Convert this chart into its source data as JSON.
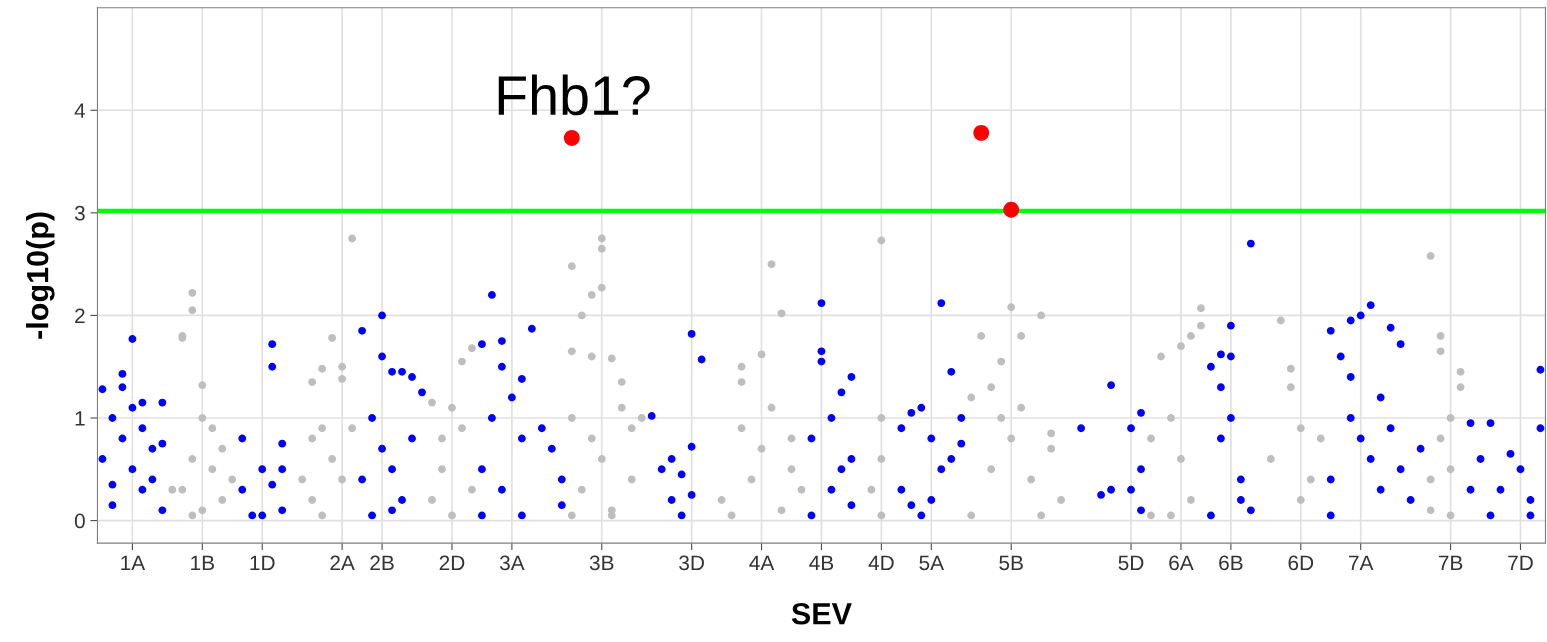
{
  "chart_data": {
    "type": "scatter",
    "xlabel": "SEV",
    "ylabel": "-log10(p)",
    "ylim": [
      -0.22,
      5.0
    ],
    "yticks": [
      0,
      1,
      2,
      3,
      4
    ],
    "categories": [
      null,
      null,
      null,
      "1A",
      null,
      null,
      null,
      null,
      null,
      null,
      "1B",
      null,
      null,
      null,
      null,
      null,
      "1D",
      null,
      null,
      null,
      null,
      null,
      null,
      null,
      "2A",
      null,
      null,
      null,
      "2B",
      null,
      null,
      null,
      null,
      null,
      null,
      "2D",
      null,
      null,
      null,
      null,
      null,
      "3A",
      null,
      null,
      null,
      null,
      null,
      null,
      null,
      null,
      "3B",
      null,
      null,
      null,
      null,
      null,
      null,
      null,
      null,
      "3D",
      null,
      null,
      null,
      null,
      null,
      null,
      "4A",
      null,
      null,
      null,
      null,
      null,
      "4B",
      null,
      null,
      null,
      null,
      null,
      "4D",
      null,
      null,
      null,
      null,
      "5A",
      null,
      null,
      null,
      null,
      null,
      null,
      null,
      "5B",
      null,
      null,
      null,
      null,
      null,
      null,
      null,
      null,
      null,
      null,
      null,
      "5D",
      null,
      null,
      null,
      null,
      "6A",
      null,
      null,
      null,
      null,
      "6B",
      null,
      null,
      null,
      null,
      null,
      null,
      "6D",
      null,
      null,
      null,
      null,
      null,
      "7A",
      null,
      null,
      null,
      null,
      null,
      null,
      null,
      null,
      "7B",
      null,
      null,
      null,
      null,
      null,
      null,
      "7D",
      null,
      null
    ],
    "grid": true,
    "marker": "circle",
    "ref_lines": [
      {
        "axis": "y",
        "value": 3.02,
        "color": "#00ff00"
      }
    ],
    "annotations": [
      "Fhb1?"
    ],
    "series": [
      {
        "color": "#0000ff",
        "values": [
          0.6,
          0.15,
          1.43,
          1.77,
          1.15,
          0.4,
          1.15,
          null,
          null,
          null,
          null,
          null,
          null,
          null,
          0.8,
          0.05,
          0.5,
          1.72,
          0.75,
          null,
          null,
          null,
          null,
          null,
          null,
          null,
          1.85,
          1.0,
          2.0,
          1.45,
          1.45,
          1.4,
          1.25,
          null,
          null,
          null,
          null,
          null,
          0.5,
          2.2,
          1.75,
          1.2,
          0.8,
          1.87,
          0.9,
          0.7,
          0.4,
          null,
          null,
          null,
          null,
          null,
          null,
          null,
          null,
          1.02,
          0.5,
          0.6,
          0.45,
          1.82,
          1.57,
          null,
          null,
          null,
          null,
          null,
          null,
          null,
          null,
          null,
          null,
          0.8,
          2.12,
          1.0,
          1.25,
          1.4,
          null,
          null,
          null,
          null,
          0.9,
          1.05,
          1.1,
          0.8,
          0.5,
          0.6,
          1.0,
          null,
          null,
          null,
          null,
          null,
          null,
          null,
          null,
          null,
          null,
          null,
          0.9,
          null,
          0.25,
          1.32,
          null,
          0.9,
          1.05,
          null,
          null,
          null,
          null,
          null,
          null,
          1.5,
          1.62,
          1.9,
          0.4,
          2.7,
          null,
          null,
          null,
          null,
          null,
          null,
          null,
          1.85,
          1.6,
          1.95,
          2.0,
          2.1,
          0.3,
          1.88,
          1.72,
          0.2,
          0.7,
          null,
          null,
          null,
          null,
          0.95,
          0.6,
          0.95,
          0.3,
          0.65,
          0.5,
          0.2,
          1.47
        ]
      },
      {
        "color": "#0000ff",
        "values": [
          1.28,
          1.0,
          1.3,
          0.5,
          0.9,
          0.7,
          0.75,
          null,
          null,
          null,
          null,
          null,
          null,
          null,
          0.3,
          null,
          0.05,
          1.5,
          0.1,
          null,
          null,
          null,
          null,
          null,
          null,
          null,
          0.4,
          0.05,
          1.6,
          0.1,
          0.2,
          0.8,
          null,
          null,
          null,
          null,
          null,
          null,
          0.05,
          1.0,
          1.5,
          null,
          1.38,
          null,
          null,
          null,
          0.15,
          null,
          null,
          null,
          null,
          null,
          null,
          null,
          null,
          null,
          null,
          0.2,
          0.05,
          0.72,
          null,
          null,
          null,
          null,
          null,
          null,
          null,
          null,
          null,
          null,
          null,
          0.05,
          1.65,
          0.3,
          0.5,
          0.6,
          null,
          null,
          null,
          null,
          0.3,
          0.15,
          0.05,
          0.2,
          2.12,
          1.45,
          0.75,
          null,
          null,
          null,
          null,
          null,
          null,
          null,
          null,
          null,
          null,
          null,
          null,
          null,
          null,
          0.3,
          null,
          0.3,
          0.5,
          null,
          null,
          null,
          null,
          null,
          null,
          0.05,
          1.3,
          1.6,
          0.2,
          0.1,
          null,
          null,
          null,
          null,
          null,
          null,
          null,
          0.4,
          null,
          1.4,
          0.8,
          0.6,
          1.2,
          0.9,
          0.5,
          null,
          null,
          null,
          null,
          null,
          null,
          0.3,
          null,
          0.05,
          null,
          null,
          null,
          0.05,
          0.9
        ]
      },
      {
        "color": "#0000ff",
        "values": [
          null,
          0.35,
          0.8,
          1.1,
          0.3,
          null,
          0.1,
          null,
          null,
          null,
          null,
          null,
          null,
          null,
          null,
          null,
          null,
          0.35,
          0.5,
          null,
          null,
          null,
          null,
          null,
          null,
          null,
          null,
          null,
          0.7,
          0.5,
          null,
          null,
          null,
          null,
          null,
          null,
          null,
          null,
          1.72,
          null,
          0.3,
          null,
          0.05,
          null,
          null,
          null,
          null,
          null,
          null,
          null,
          null,
          null,
          null,
          null,
          null,
          null,
          null,
          null,
          null,
          0.25,
          null,
          null,
          null,
          null,
          null,
          null,
          null,
          null,
          null,
          null,
          null,
          null,
          1.55,
          null,
          null,
          0.15,
          null,
          null,
          null,
          null,
          null,
          null,
          null,
          null,
          null,
          null,
          null,
          null,
          null,
          null,
          null,
          null,
          null,
          null,
          null,
          null,
          null,
          null,
          null,
          null,
          null,
          null,
          null,
          null,
          0.1,
          null,
          null,
          null,
          null,
          null,
          null,
          null,
          0.8,
          1.0,
          null,
          null,
          null,
          null,
          null,
          null,
          null,
          null,
          null,
          0.05,
          null,
          1.0,
          null,
          null,
          null,
          null,
          null,
          null,
          null,
          null,
          null,
          null,
          null,
          null,
          null,
          null,
          null,
          null,
          null,
          null,
          null
        ]
      },
      {
        "color": "#bebebe",
        "values": [
          null,
          null,
          null,
          null,
          null,
          null,
          null,
          0.3,
          1.78,
          2.22,
          1.32,
          0.9,
          0.7,
          0.4,
          null,
          null,
          null,
          null,
          null,
          null,
          0.4,
          1.35,
          1.48,
          1.78,
          1.5,
          2.75,
          null,
          null,
          null,
          null,
          null,
          null,
          null,
          1.15,
          0.8,
          1.1,
          1.55,
          1.68,
          null,
          null,
          null,
          null,
          null,
          null,
          null,
          null,
          null,
          2.48,
          2.0,
          1.6,
          2.75,
          1.58,
          1.1,
          0.9,
          1.0,
          null,
          null,
          null,
          null,
          null,
          null,
          null,
          0.2,
          0.05,
          0.9,
          0.4,
          1.62,
          2.5,
          2.02,
          0.8,
          0.3,
          null,
          null,
          null,
          null,
          null,
          null,
          0.3,
          2.73,
          null,
          null,
          null,
          null,
          null,
          null,
          null,
          null,
          1.2,
          1.8,
          1.3,
          1.55,
          2.08,
          1.8,
          0.4,
          2.0,
          0.7,
          0.2,
          null,
          null,
          null,
          null,
          null,
          null,
          null,
          null,
          0.8,
          1.6,
          1.0,
          1.7,
          1.8,
          2.07,
          null,
          null,
          null,
          null,
          null,
          null,
          0.6,
          1.95,
          1.3,
          0.9,
          0.4,
          0.8,
          null,
          null,
          null,
          null,
          null,
          null,
          null,
          null,
          null,
          null,
          2.58,
          1.65,
          1.0,
          1.45,
          null,
          null,
          null,
          null,
          null,
          null,
          null,
          null
        ]
      },
      {
        "color": "#bebebe",
        "values": [
          null,
          null,
          null,
          null,
          null,
          null,
          null,
          null,
          1.8,
          2.05,
          1.0,
          0.5,
          0.2,
          null,
          null,
          null,
          null,
          null,
          null,
          null,
          null,
          0.8,
          0.9,
          0.6,
          1.38,
          0.9,
          null,
          null,
          null,
          null,
          null,
          null,
          null,
          0.2,
          0.5,
          0.05,
          0.9,
          0.3,
          null,
          null,
          null,
          null,
          null,
          null,
          null,
          null,
          null,
          1.65,
          0.3,
          0.8,
          2.65,
          0.05,
          1.35,
          0.4,
          null,
          null,
          null,
          null,
          null,
          null,
          null,
          null,
          null,
          null,
          1.5,
          null,
          0.7,
          1.1,
          0.1,
          0.5,
          null,
          null,
          null,
          null,
          null,
          null,
          null,
          null,
          1.0,
          null,
          null,
          null,
          null,
          null,
          null,
          null,
          null,
          0.05,
          null,
          0.5,
          1.0,
          0.8,
          1.1,
          null,
          0.05,
          0.85,
          null,
          null,
          null,
          null,
          null,
          null,
          null,
          null,
          null,
          0.05,
          null,
          0.05,
          0.6,
          0.2,
          1.9,
          null,
          null,
          null,
          null,
          null,
          null,
          null,
          null,
          1.48,
          0.2,
          null,
          null,
          null,
          null,
          null,
          null,
          null,
          null,
          null,
          null,
          null,
          null,
          0.1,
          1.8,
          0.5,
          1.3,
          null,
          null,
          null,
          null,
          null,
          null,
          null,
          null
        ]
      },
      {
        "color": "#bebebe",
        "values": [
          null,
          null,
          null,
          null,
          null,
          null,
          null,
          null,
          0.3,
          0.6,
          0.1,
          null,
          null,
          null,
          null,
          null,
          null,
          null,
          null,
          null,
          null,
          0.2,
          0.05,
          null,
          0.4,
          null,
          null,
          null,
          null,
          null,
          null,
          null,
          null,
          null,
          null,
          null,
          null,
          null,
          null,
          null,
          null,
          null,
          null,
          null,
          null,
          null,
          null,
          1.0,
          null,
          2.2,
          2.27,
          0.1,
          null,
          null,
          null,
          null,
          null,
          null,
          null,
          null,
          null,
          null,
          null,
          null,
          1.35,
          null,
          null,
          null,
          null,
          null,
          null,
          null,
          null,
          null,
          null,
          null,
          null,
          null,
          0.6,
          null,
          null,
          null,
          null,
          null,
          null,
          null,
          null,
          null,
          null,
          null,
          null,
          null,
          null,
          null,
          null,
          null,
          null,
          null,
          null,
          null,
          null,
          null,
          null,
          null,
          null,
          null,
          null,
          null,
          null,
          null,
          null,
          null,
          null,
          null,
          null,
          null,
          null,
          null,
          null,
          null,
          null,
          null,
          null,
          null,
          null,
          null,
          null,
          null,
          null,
          null,
          null,
          null,
          null,
          0.4,
          0.8,
          0.05,
          null,
          null,
          null,
          null,
          null,
          null,
          null,
          null,
          null
        ]
      },
      {
        "color": "#bebebe",
        "values": [
          null,
          null,
          null,
          null,
          null,
          null,
          null,
          null,
          null,
          0.05,
          null,
          null,
          null,
          null,
          null,
          null,
          null,
          null,
          null,
          null,
          null,
          null,
          null,
          null,
          null,
          null,
          null,
          null,
          null,
          null,
          null,
          null,
          null,
          null,
          null,
          null,
          null,
          null,
          null,
          null,
          null,
          null,
          null,
          null,
          null,
          null,
          null,
          0.05,
          null,
          null,
          0.6,
          null,
          null,
          null,
          null,
          null,
          null,
          null,
          null,
          null,
          null,
          null,
          null,
          null,
          null,
          null,
          null,
          null,
          null,
          null,
          null,
          null,
          null,
          null,
          null,
          null,
          null,
          null,
          0.05,
          null,
          null,
          null,
          null,
          null,
          null,
          null,
          null,
          null,
          null,
          null,
          null,
          null,
          null,
          null,
          null,
          null,
          null,
          null,
          null,
          null,
          null,
          null,
          null,
          null,
          null,
          null,
          null,
          null,
          null,
          null,
          null,
          null,
          null,
          null,
          null,
          null,
          null,
          null,
          null,
          null,
          null,
          null,
          null,
          null,
          null,
          null,
          null,
          null,
          null,
          null,
          null,
          null,
          null,
          null,
          null,
          null,
          null,
          null,
          null,
          null,
          null,
          null,
          null,
          null,
          null
        ]
      },
      {
        "color": "#ff0000",
        "values": [
          null,
          null,
          null,
          null,
          null,
          null,
          null,
          null,
          null,
          null,
          null,
          null,
          null,
          null,
          null,
          null,
          null,
          null,
          null,
          null,
          null,
          null,
          null,
          null,
          null,
          null,
          null,
          null,
          null,
          null,
          null,
          null,
          null,
          null,
          null,
          null,
          null,
          null,
          null,
          null,
          null,
          null,
          null,
          null,
          null,
          null,
          null,
          3.73,
          null,
          null,
          null,
          null,
          null,
          null,
          null,
          null,
          null,
          null,
          null,
          null,
          null,
          null,
          null,
          null,
          null,
          null,
          null,
          null,
          null,
          null,
          null,
          null,
          null,
          null,
          null,
          null,
          null,
          null,
          null,
          null,
          null,
          null,
          null,
          null,
          null,
          null,
          null,
          null,
          3.78,
          null,
          null,
          3.03,
          null,
          null,
          null,
          null,
          null,
          null,
          null,
          null,
          null,
          null,
          null,
          null,
          null,
          null,
          null,
          null,
          null,
          null,
          null,
          null,
          null,
          null,
          null,
          null,
          null,
          null,
          null,
          null,
          null,
          null,
          null,
          null,
          null,
          null,
          null,
          null,
          null,
          null,
          null,
          null,
          null,
          null,
          null,
          null,
          null,
          null,
          null,
          null,
          null,
          null,
          null,
          null,
          null
        ]
      }
    ]
  }
}
